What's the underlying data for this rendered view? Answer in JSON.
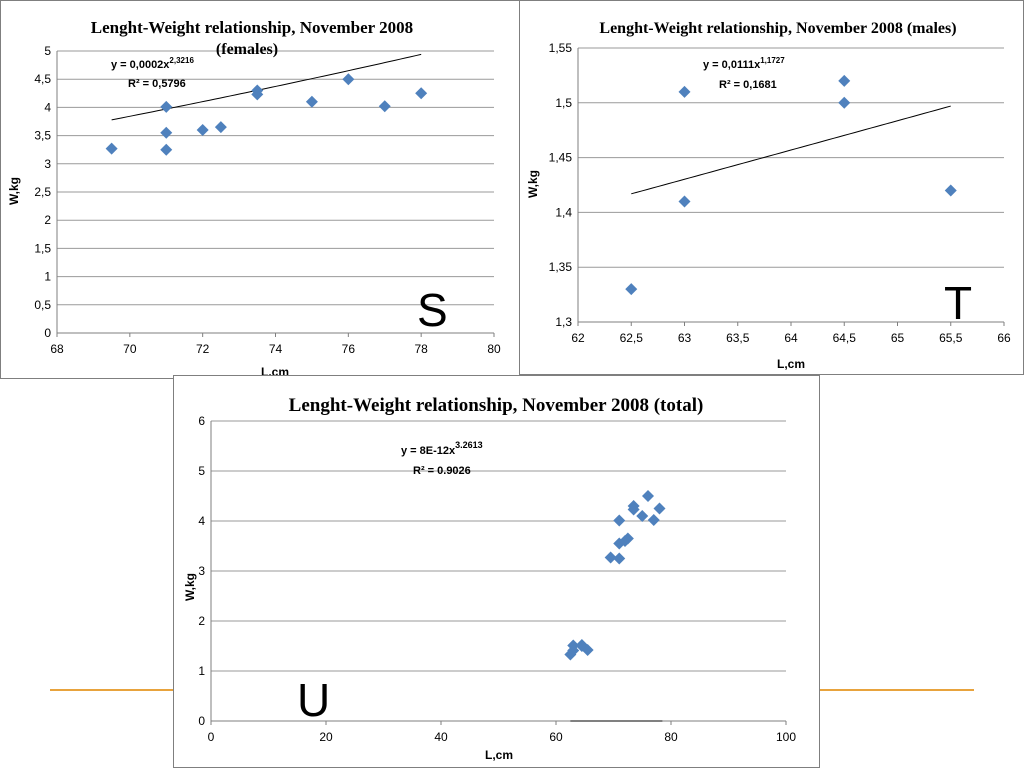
{
  "accent_line_color": "#e8a33d",
  "marker_color": "#4f81bd",
  "chart_data": [
    {
      "id": "females",
      "type": "scatter",
      "title": "Lenght-Weight relationship, November 2008",
      "subtitle": "(females)",
      "xlabel": "L,cm",
      "ylabel": "W,kg",
      "xlim": [
        68,
        80
      ],
      "ylim": [
        0,
        5
      ],
      "xticks": [
        "68",
        "70",
        "72",
        "74",
        "76",
        "78",
        "80"
      ],
      "yticks": [
        "0",
        "0,5",
        "1",
        "1,5",
        "2",
        "2,5",
        "3",
        "3,5",
        "4",
        "4,5",
        "5"
      ],
      "grid": true,
      "trend": {
        "type": "power",
        "equation": "y = 0,0002x",
        "exponent": "2,3216",
        "r2": "R² = 0,5796",
        "a": 0.0002,
        "b": 2.3216,
        "x_range": [
          69.5,
          78
        ]
      },
      "points": [
        {
          "x": 69.5,
          "y": 3.27
        },
        {
          "x": 71,
          "y": 4.01
        },
        {
          "x": 71,
          "y": 3.55
        },
        {
          "x": 71,
          "y": 3.25
        },
        {
          "x": 72,
          "y": 3.6
        },
        {
          "x": 72.5,
          "y": 3.65
        },
        {
          "x": 73.5,
          "y": 4.3
        },
        {
          "x": 73.5,
          "y": 4.23
        },
        {
          "x": 75,
          "y": 4.1
        },
        {
          "x": 76,
          "y": 4.5
        },
        {
          "x": 77,
          "y": 4.02
        },
        {
          "x": 78,
          "y": 4.25
        }
      ],
      "panel_letter": "S"
    },
    {
      "id": "males",
      "type": "scatter",
      "title": "Lenght-Weight relationship, November 2008 (males)",
      "xlabel": "L,cm",
      "ylabel": "W,kg",
      "xlim": [
        62,
        66
      ],
      "ylim": [
        1.3,
        1.55
      ],
      "xticks": [
        "62",
        "62,5",
        "63",
        "63,5",
        "64",
        "64,5",
        "65",
        "65,5",
        "66"
      ],
      "yticks": [
        "1,3",
        "1,35",
        "1,4",
        "1,45",
        "1,5",
        "1,55"
      ],
      "grid": true,
      "trend": {
        "type": "power",
        "equation": "y = 0,0111x",
        "exponent": "1,1727",
        "r2": "R² = 0,1681",
        "a": 0.0111,
        "b": 1.1727,
        "x_range": [
          62.5,
          65.5
        ]
      },
      "points": [
        {
          "x": 62.5,
          "y": 1.33
        },
        {
          "x": 63,
          "y": 1.51
        },
        {
          "x": 63,
          "y": 1.41
        },
        {
          "x": 64.5,
          "y": 1.52
        },
        {
          "x": 64.5,
          "y": 1.5
        },
        {
          "x": 65.5,
          "y": 1.42
        }
      ],
      "panel_letter": "T"
    },
    {
      "id": "total",
      "type": "scatter",
      "title": "Lenght-Weight relationship, November 2008 (total)",
      "xlabel": "L,cm",
      "ylabel": "W,kg",
      "xlim": [
        0,
        100
      ],
      "ylim": [
        0,
        6
      ],
      "xticks": [
        "0",
        "20",
        "40",
        "60",
        "80",
        "100"
      ],
      "yticks": [
        "0",
        "1",
        "2",
        "3",
        "4",
        "5",
        "6"
      ],
      "grid": true,
      "trend": {
        "type": "power",
        "equation": "y = 8E-12x",
        "exponent": "3.2613",
        "r2": "R² = 0.9026",
        "a": 8e-12,
        "b": 3.2613,
        "x_range": [
          62.5,
          78.5
        ]
      },
      "points": [
        {
          "x": 62.5,
          "y": 1.33
        },
        {
          "x": 63,
          "y": 1.51
        },
        {
          "x": 63,
          "y": 1.41
        },
        {
          "x": 64.5,
          "y": 1.52
        },
        {
          "x": 64.5,
          "y": 1.5
        },
        {
          "x": 65.5,
          "y": 1.42
        },
        {
          "x": 69.5,
          "y": 3.27
        },
        {
          "x": 71,
          "y": 4.01
        },
        {
          "x": 71,
          "y": 3.55
        },
        {
          "x": 71,
          "y": 3.25
        },
        {
          "x": 72,
          "y": 3.6
        },
        {
          "x": 72.5,
          "y": 3.65
        },
        {
          "x": 73.5,
          "y": 4.3
        },
        {
          "x": 73.5,
          "y": 4.23
        },
        {
          "x": 75,
          "y": 4.1
        },
        {
          "x": 76,
          "y": 4.5
        },
        {
          "x": 77,
          "y": 4.02
        },
        {
          "x": 78,
          "y": 4.25
        }
      ],
      "panel_letter": "U"
    }
  ]
}
